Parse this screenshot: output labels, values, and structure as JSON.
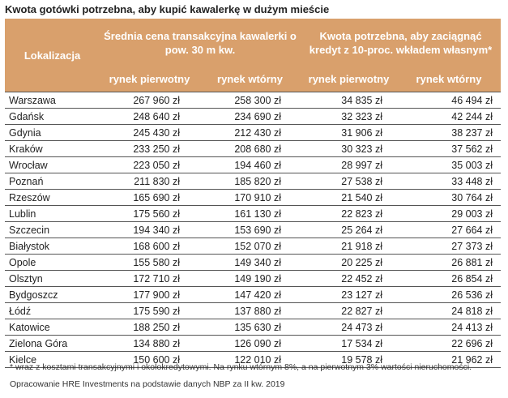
{
  "title": "Kwota gotówki potrzebna, aby kupić kawalerkę w dużym mieście",
  "header": {
    "lokalizacja": "Lokalizacja",
    "group1": "Średnia cena transakcyjna kawalerki o pow. 30 m kw.",
    "group2": "Kwota potrzebna, aby zaciągnąć kredyt z 10-proc. wkładem własnym*",
    "sub1": "rynek pierwotny",
    "sub2": "rynek wtórny",
    "sub3": "rynek pierwotny",
    "sub4": "rynek wtórny"
  },
  "colors": {
    "header_bg": "#d9a06c",
    "header_text": "#ffffff",
    "border": "#555555"
  },
  "rows": [
    {
      "city": "Warszawa",
      "p1": "267 960 zł",
      "w1": "258 300 zł",
      "p2": "34 835 zł",
      "w2": "46 494 zł"
    },
    {
      "city": "Gdańsk",
      "p1": "248 640 zł",
      "w1": "234 690 zł",
      "p2": "32 323 zł",
      "w2": "42 244 zł"
    },
    {
      "city": "Gdynia",
      "p1": "245 430 zł",
      "w1": "212 430 zł",
      "p2": "31 906 zł",
      "w2": "38 237 zł"
    },
    {
      "city": "Kraków",
      "p1": "233 250 zł",
      "w1": "208 680 zł",
      "p2": "30 323 zł",
      "w2": "37 562 zł"
    },
    {
      "city": "Wrocław",
      "p1": "223 050 zł",
      "w1": "194 460 zł",
      "p2": "28 997 zł",
      "w2": "35 003 zł"
    },
    {
      "city": "Poznań",
      "p1": "211 830 zł",
      "w1": "185 820 zł",
      "p2": "27 538 zł",
      "w2": "33 448 zł"
    },
    {
      "city": "Rzeszów",
      "p1": "165 690 zł",
      "w1": "170 910 zł",
      "p2": "21 540 zł",
      "w2": "30 764 zł"
    },
    {
      "city": "Lublin",
      "p1": "175 560 zł",
      "w1": "161 130 zł",
      "p2": "22 823 zł",
      "w2": "29 003 zł"
    },
    {
      "city": "Szczecin",
      "p1": "194 340 zł",
      "w1": "153 690 zł",
      "p2": "25 264 zł",
      "w2": "27 664 zł"
    },
    {
      "city": "Białystok",
      "p1": "168 600 zł",
      "w1": "152 070 zł",
      "p2": "21 918 zł",
      "w2": "27 373 zł"
    },
    {
      "city": "Opole",
      "p1": "155 580 zł",
      "w1": "149 340 zł",
      "p2": "20 225 zł",
      "w2": "26 881 zł"
    },
    {
      "city": "Olsztyn",
      "p1": "172 710 zł",
      "w1": "149 190 zł",
      "p2": "22 452 zł",
      "w2": "26 854 zł"
    },
    {
      "city": "Bydgoszcz",
      "p1": "177 900 zł",
      "w1": "147 420 zł",
      "p2": "23 127 zł",
      "w2": "26 536 zł"
    },
    {
      "city": "Łódź",
      "p1": "175 590 zł",
      "w1": "137 880 zł",
      "p2": "22 827 zł",
      "w2": "24 818 zł"
    },
    {
      "city": "Katowice",
      "p1": "188 250 zł",
      "w1": "135 630 zł",
      "p2": "24 473 zł",
      "w2": "24 413 zł"
    },
    {
      "city": "Zielona Góra",
      "p1": "134 880 zł",
      "w1": "126 090 zł",
      "p2": "17 534 zł",
      "w2": "22 696 zł"
    },
    {
      "city": "Kielce",
      "p1": "150 600 zł",
      "w1": "122 010 zł",
      "p2": "19 578 zł",
      "w2": "21 962 zł"
    }
  ],
  "footnote": "* wraz z kosztami transakcyjnymi i okołokredytowymi. Na rynku wtórnym 8%, a na pierwotnym 3% wartości nieruchomości.",
  "source": "Opracowanie HRE Investments na podstawie danych NBP za II kw. 2019"
}
